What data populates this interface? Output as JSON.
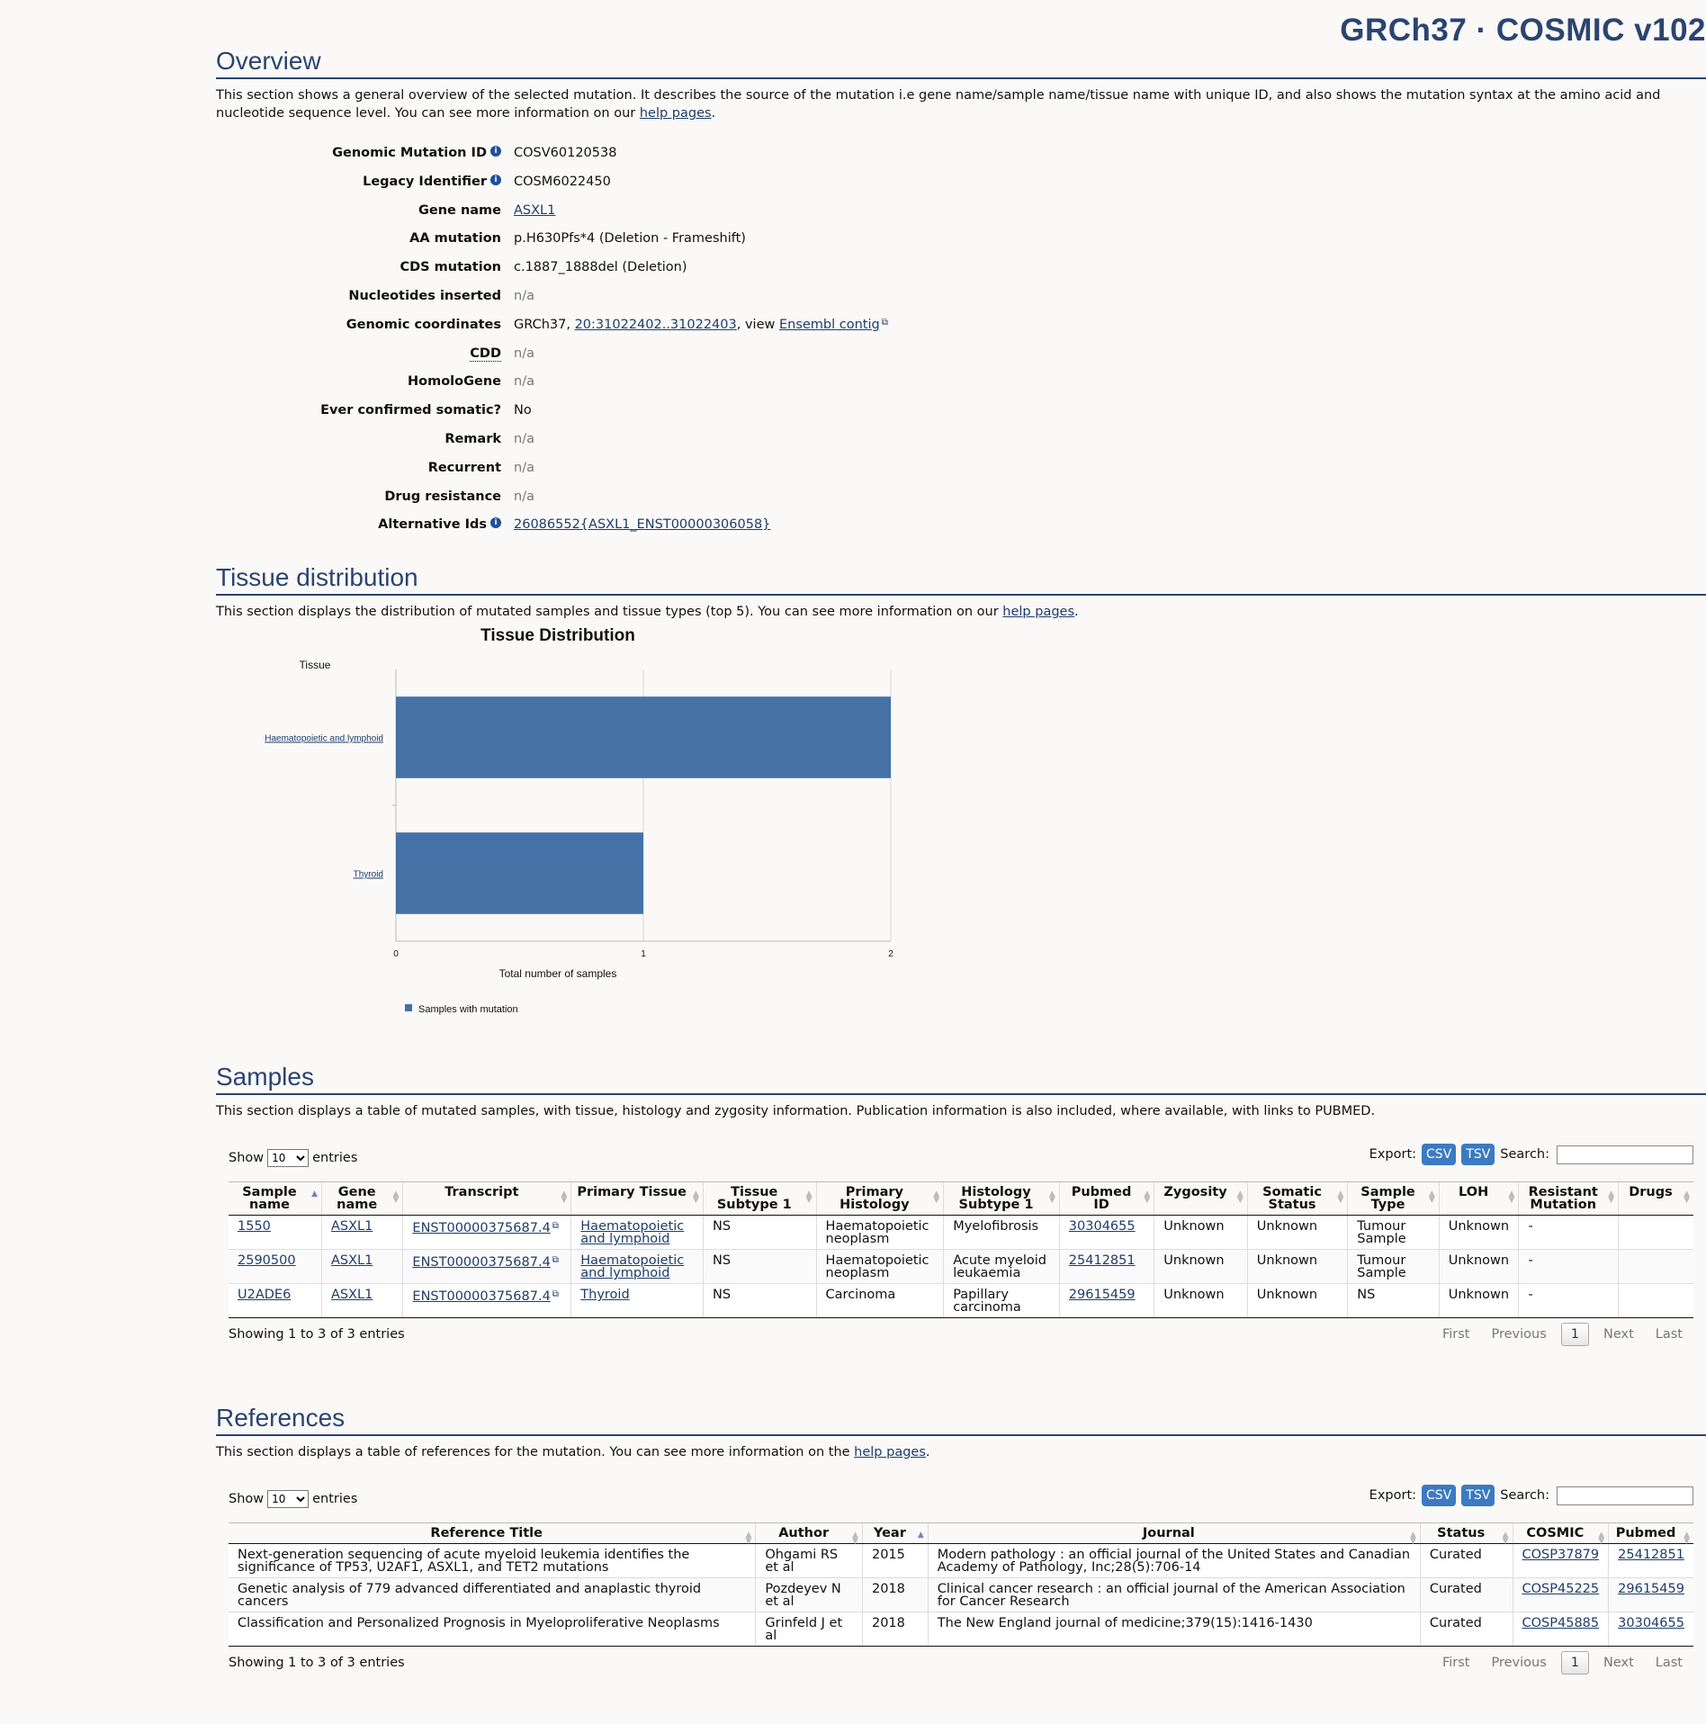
{
  "header": {
    "title": "GRCh37 · COSMIC v102"
  },
  "overview": {
    "heading": "Overview",
    "intro_text": "This section shows a general overview of the selected mutation. It describes the source of the mutation i.e gene name/sample name/tissue name with unique ID, and also shows the mutation syntax at the amino acid and nucleotide sequence level. You can see more information on our ",
    "intro_link": "help pages",
    "intro_end": ".",
    "fields": {
      "genomic_mutation_id": {
        "label": "Genomic Mutation ID",
        "value": "COSV60120538"
      },
      "legacy_identifier": {
        "label": "Legacy Identifier",
        "value": "COSM6022450"
      },
      "gene_name": {
        "label": "Gene name",
        "value": "ASXL1"
      },
      "aa_mutation": {
        "label": "AA mutation",
        "value": "p.H630Pfs*4 (Deletion - Frameshift)"
      },
      "cds_mutation": {
        "label": "CDS mutation",
        "value": "c.1887_1888del (Deletion)"
      },
      "nucleotides_inserted": {
        "label": "Nucleotides inserted",
        "value": "n/a"
      },
      "genomic_coordinates": {
        "label": "Genomic coordinates",
        "prefix": "GRCh37, ",
        "link": "20:31022402..31022403",
        "middle": ", view ",
        "link2": "Ensembl contig"
      },
      "cdd": {
        "label": "CDD",
        "value": "n/a"
      },
      "homologene": {
        "label": "HomoloGene",
        "value": "n/a"
      },
      "ever_confirmed_somatic": {
        "label": "Ever confirmed somatic?",
        "value": "No"
      },
      "remark": {
        "label": "Remark",
        "value": "n/a"
      },
      "recurrent": {
        "label": "Recurrent",
        "value": "n/a"
      },
      "drug_resistance": {
        "label": "Drug resistance",
        "value": "n/a"
      },
      "alternative_ids": {
        "label": "Alternative Ids",
        "value": "26086552{ASXL1_ENST00000306058}"
      }
    },
    "info_icon": "info-circle-icon"
  },
  "tissue": {
    "heading": "Tissue distribution",
    "intro_text": "This section displays the distribution of mutated samples and tissue types (top 5). You can see more information on our ",
    "intro_link": "help pages",
    "intro_end": "."
  },
  "chart_data": {
    "type": "bar",
    "orientation": "horizontal",
    "title": "Tissue Distribution",
    "ylabel": "Tissue",
    "xlabel": "Total number of samples",
    "categories": [
      "Haematopoietic and lymphoid",
      "Thyroid"
    ],
    "series": [
      {
        "name": "Samples with mutation",
        "values": [
          2,
          1
        ],
        "color": "#4572a7"
      }
    ],
    "xlim": [
      0,
      2
    ],
    "x_ticks": [
      "0",
      "1",
      "2"
    ],
    "grid": true,
    "legend": "bottom-left"
  },
  "samples": {
    "heading": "Samples",
    "intro_text": "This section displays a table of mutated samples, with tissue, histology and zygosity information. Publication information is also included, where available, with links to PUBMED.",
    "show_label": "Show",
    "entries_label": "entries",
    "page_size": "10",
    "export_label": "Export:",
    "csv_label": "CSV",
    "tsv_label": "TSV",
    "search_label": "Search:",
    "columns": [
      "Sample name",
      "Gene name",
      "Transcript",
      "Primary Tissue",
      "Tissue Subtype 1",
      "Primary Histology",
      "Histology Subtype 1",
      "Pubmed ID",
      "Zygosity",
      "Somatic Status",
      "Sample Type",
      "LOH",
      "Resistant Mutation",
      "Drugs"
    ],
    "rows": [
      [
        "1550",
        "ASXL1",
        "ENST00000375687.4",
        "Haematopoietic and lymphoid",
        "NS",
        "Haematopoietic neoplasm",
        "Myelofibrosis",
        "30304655",
        "Unknown",
        "Unknown",
        "Tumour Sample",
        "Unknown",
        "-",
        ""
      ],
      [
        "2590500",
        "ASXL1",
        "ENST00000375687.4",
        "Haematopoietic and lymphoid",
        "NS",
        "Haematopoietic neoplasm",
        "Acute myeloid leukaemia",
        "25412851",
        "Unknown",
        "Unknown",
        "Tumour Sample",
        "Unknown",
        "-",
        ""
      ],
      [
        "U2ADE6",
        "ASXL1",
        "ENST00000375687.4",
        "Thyroid",
        "NS",
        "Carcinoma",
        "Papillary carcinoma",
        "29615459",
        "Unknown",
        "Unknown",
        "NS",
        "Unknown",
        "-",
        ""
      ]
    ],
    "info": "Showing 1 to 3 of 3 entries",
    "pager": {
      "first": "First",
      "previous": "Previous",
      "current": "1",
      "next": "Next",
      "last": "Last"
    }
  },
  "references": {
    "heading": "References",
    "intro_text": "This section displays a table of references for the mutation. You can see more information on the ",
    "intro_link": "help pages",
    "intro_end": ".",
    "show_label": "Show",
    "entries_label": "entries",
    "page_size": "10",
    "export_label": "Export:",
    "csv_label": "CSV",
    "tsv_label": "TSV",
    "search_label": "Search:",
    "columns": [
      "Reference Title",
      "Author",
      "Year",
      "Journal",
      "Status",
      "COSMIC",
      "Pubmed"
    ],
    "rows": [
      [
        "Next-generation sequencing of acute myeloid leukemia identifies the significance of TP53, U2AF1, ASXL1, and TET2 mutations",
        "Ohgami RS et al",
        "2015",
        "Modern pathology : an official journal of the United States and Canadian Academy of Pathology, Inc;28(5):706-14",
        "Curated",
        "COSP37879",
        "25412851"
      ],
      [
        "Genetic analysis of 779 advanced differentiated and anaplastic thyroid cancers",
        "Pozdeyev N et al",
        "2018",
        "Clinical cancer research : an official journal of the American Association for Cancer Research",
        "Curated",
        "COSP45225",
        "29615459"
      ],
      [
        "Classification and Personalized Prognosis in Myeloproliferative Neoplasms",
        "Grinfeld J et al",
        "2018",
        "The New England journal of medicine;379(15):1416-1430",
        "Curated",
        "COSP45885",
        "30304655"
      ]
    ],
    "info": "Showing 1 to 3 of 3 entries",
    "pager": {
      "first": "First",
      "previous": "Previous",
      "current": "1",
      "next": "Next",
      "last": "Last"
    }
  }
}
